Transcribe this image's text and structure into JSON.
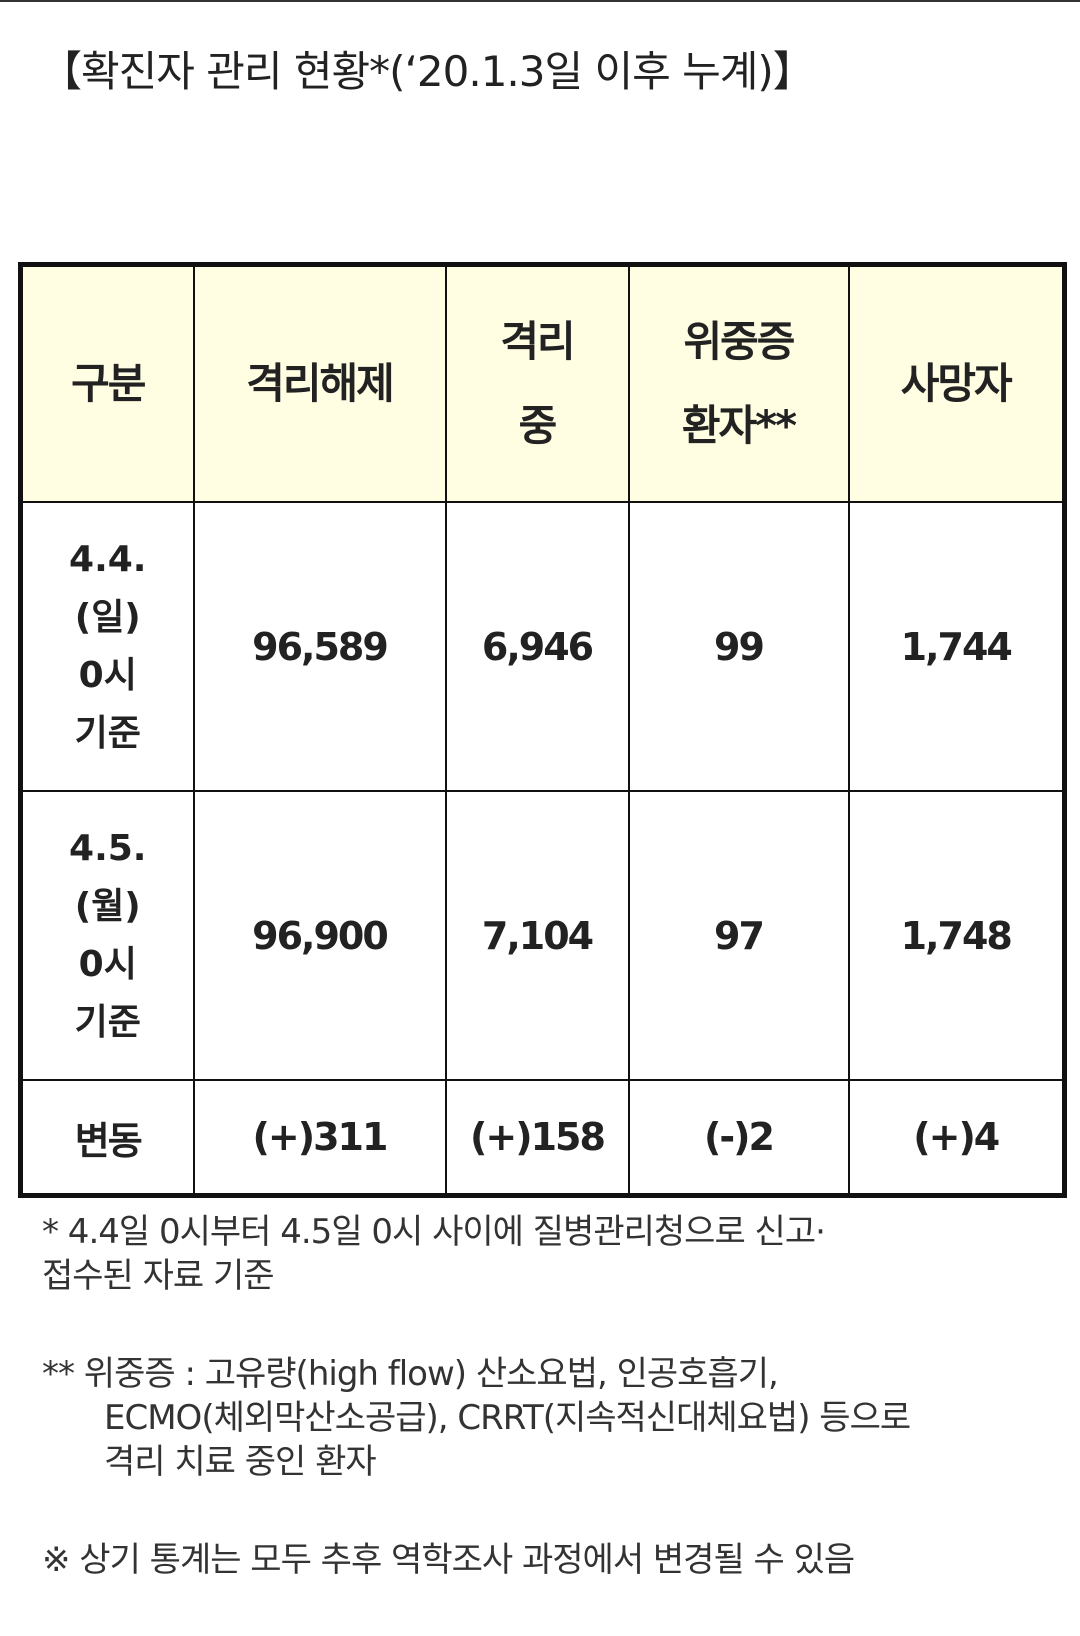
{
  "title": "【확진자 관리 현황*(‘20.1.3일 이후 누계)】",
  "table": {
    "header": [
      [
        "구분"
      ],
      [
        "격리해제"
      ],
      [
        "격리",
        "중"
      ],
      [
        "위중증",
        "환자**"
      ],
      [
        "사망자"
      ]
    ],
    "rows": [
      [
        [
          "4.4.",
          "(일)",
          "0시",
          "기준"
        ],
        "96,589",
        "6,946",
        "99",
        "1,744"
      ],
      [
        [
          "4.5.",
          "(월)",
          "0시",
          "기준"
        ],
        "96,900",
        "7,104",
        "97",
        "1,748"
      ],
      [
        [
          "변동"
        ],
        "(+)311",
        "(+)158",
        "(-)2",
        "(+)4"
      ]
    ]
  },
  "notes": [
    [
      "* 4.4일 0시부터 4.5일 0시 사이에 질병관리청으로 신고·",
      "접수된 자료 기준"
    ],
    [
      "** 위중증 : 고유량(high flow) 산소요법, 인공호흡기,",
      "ECMO(체외막산소공급), CRRT(지속적신대체요법) 등으로",
      "격리 치료 중인 환자"
    ],
    [
      "※ 상기 통계는 모두 추후 역학조사 과정에서 변경될 수 있음"
    ]
  ]
}
